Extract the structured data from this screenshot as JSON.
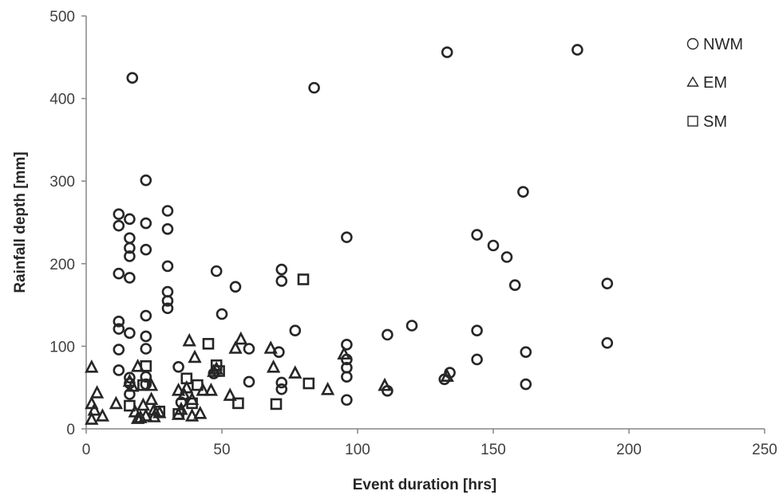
{
  "chart_data": {
    "type": "scatter",
    "xlabel": "Event duration [hrs]",
    "ylabel": "Rainfall depth [mm]",
    "xlim": [
      0,
      250
    ],
    "ylim": [
      0,
      500
    ],
    "xticks": [
      0,
      50,
      100,
      150,
      200,
      250
    ],
    "yticks": [
      0,
      100,
      200,
      300,
      400,
      500
    ],
    "grid": false,
    "legend_position": "top-right",
    "series": [
      {
        "name": "NWM",
        "marker": "circle",
        "points": [
          [
            12,
            260
          ],
          [
            12,
            246
          ],
          [
            12,
            188
          ],
          [
            12,
            130
          ],
          [
            12,
            121
          ],
          [
            12,
            96
          ],
          [
            12,
            71
          ],
          [
            16,
            254
          ],
          [
            16,
            231
          ],
          [
            16,
            219
          ],
          [
            16,
            209
          ],
          [
            16,
            183
          ],
          [
            16,
            116
          ],
          [
            16,
            62
          ],
          [
            16,
            55
          ],
          [
            16,
            42
          ],
          [
            17,
            425
          ],
          [
            22,
            301
          ],
          [
            22,
            249
          ],
          [
            22,
            217
          ],
          [
            22,
            137
          ],
          [
            22,
            112
          ],
          [
            22,
            97
          ],
          [
            22,
            63
          ],
          [
            22,
            54
          ],
          [
            30,
            264
          ],
          [
            30,
            242
          ],
          [
            30,
            197
          ],
          [
            30,
            166
          ],
          [
            30,
            155
          ],
          [
            30,
            146
          ],
          [
            34,
            75
          ],
          [
            35,
            32
          ],
          [
            47,
            67
          ],
          [
            48,
            191
          ],
          [
            50,
            139
          ],
          [
            55,
            172
          ],
          [
            60,
            97
          ],
          [
            60,
            57
          ],
          [
            71,
            93
          ],
          [
            72,
            193
          ],
          [
            72,
            179
          ],
          [
            72,
            56
          ],
          [
            72,
            48
          ],
          [
            77,
            119
          ],
          [
            84,
            413
          ],
          [
            96,
            232
          ],
          [
            96,
            102
          ],
          [
            96,
            84
          ],
          [
            96,
            74
          ],
          [
            96,
            63
          ],
          [
            96,
            35
          ],
          [
            111,
            114
          ],
          [
            111,
            46
          ],
          [
            120,
            125
          ],
          [
            132,
            60
          ],
          [
            133,
            456
          ],
          [
            134,
            68
          ],
          [
            144,
            235
          ],
          [
            144,
            119
          ],
          [
            144,
            84
          ],
          [
            150,
            222
          ],
          [
            155,
            208
          ],
          [
            158,
            174
          ],
          [
            161,
            287
          ],
          [
            162,
            93
          ],
          [
            162,
            54
          ],
          [
            181,
            459
          ],
          [
            192,
            176
          ],
          [
            192,
            104
          ]
        ]
      },
      {
        "name": "EM",
        "marker": "triangle",
        "points": [
          [
            2,
            74
          ],
          [
            2,
            30
          ],
          [
            2,
            11
          ],
          [
            3,
            22
          ],
          [
            4,
            43
          ],
          [
            6,
            15
          ],
          [
            11,
            30
          ],
          [
            16,
            57
          ],
          [
            17,
            51
          ],
          [
            18,
            20
          ],
          [
            19,
            12
          ],
          [
            19,
            75
          ],
          [
            20,
            13
          ],
          [
            21,
            28
          ],
          [
            22,
            15
          ],
          [
            24,
            35
          ],
          [
            24,
            52
          ],
          [
            25,
            22
          ],
          [
            25,
            14
          ],
          [
            27,
            19
          ],
          [
            34,
            17
          ],
          [
            34,
            46
          ],
          [
            35,
            23
          ],
          [
            36,
            41
          ],
          [
            37,
            49
          ],
          [
            38,
            106
          ],
          [
            39,
            35
          ],
          [
            39,
            15
          ],
          [
            40,
            86
          ],
          [
            42,
            18
          ],
          [
            43,
            46
          ],
          [
            46,
            46
          ],
          [
            47,
            69
          ],
          [
            48,
            72
          ],
          [
            53,
            40
          ],
          [
            55,
            97
          ],
          [
            57,
            108
          ],
          [
            68,
            97
          ],
          [
            69,
            74
          ],
          [
            77,
            67
          ],
          [
            89,
            47
          ],
          [
            95,
            90
          ],
          [
            110,
            52
          ],
          [
            133,
            63
          ]
        ]
      },
      {
        "name": "SM",
        "marker": "square",
        "points": [
          [
            16,
            28
          ],
          [
            22,
            76
          ],
          [
            21,
            53
          ],
          [
            27,
            21
          ],
          [
            34,
            18
          ],
          [
            37,
            61
          ],
          [
            39,
            31
          ],
          [
            41,
            53
          ],
          [
            45,
            103
          ],
          [
            48,
            77
          ],
          [
            49,
            70
          ],
          [
            56,
            31
          ],
          [
            70,
            30
          ],
          [
            80,
            181
          ],
          [
            82,
            55
          ]
        ]
      }
    ]
  }
}
